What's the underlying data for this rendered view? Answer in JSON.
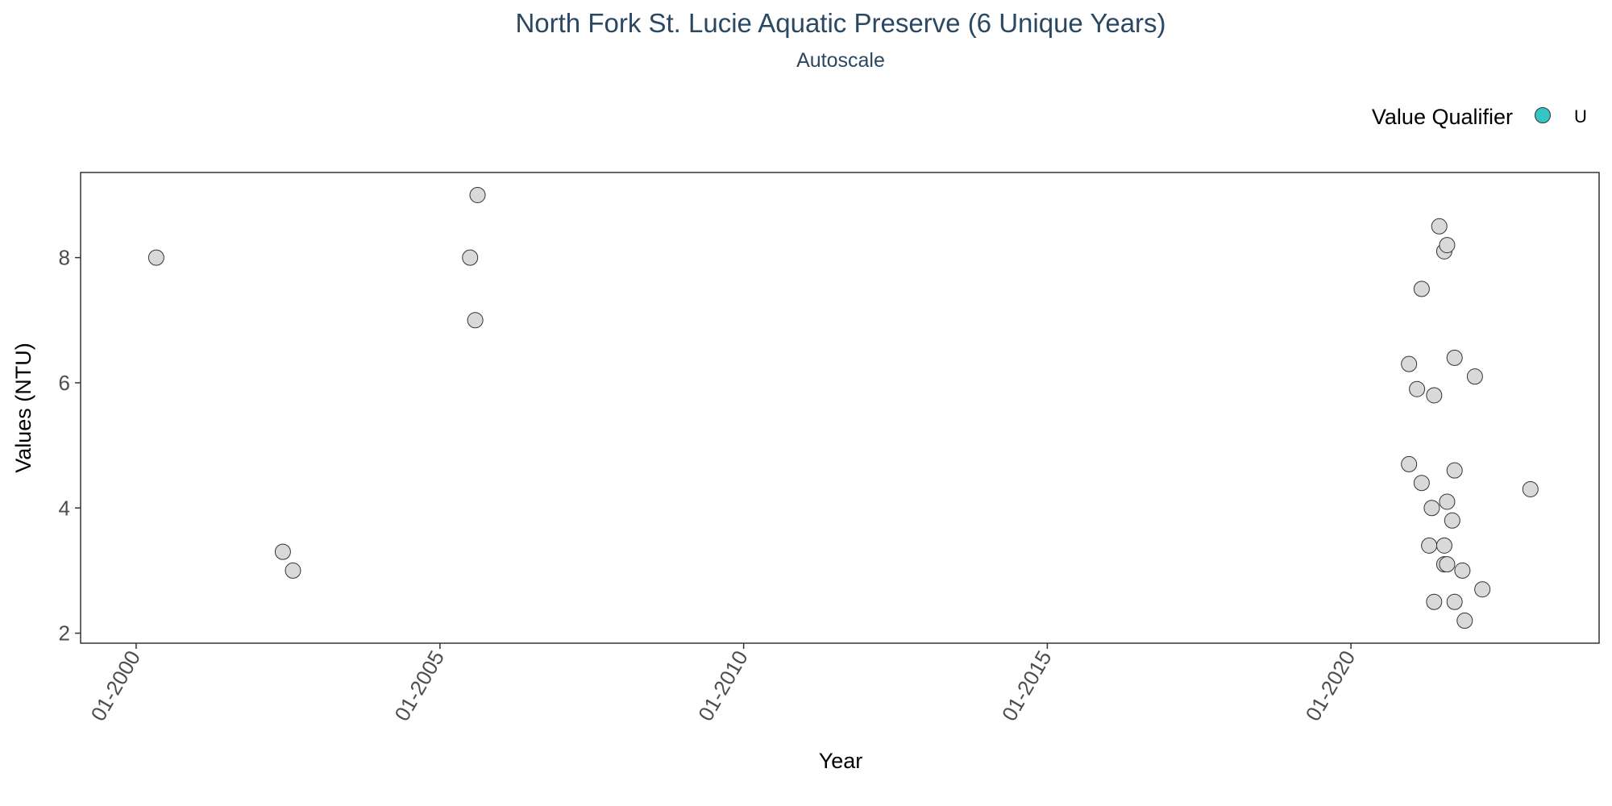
{
  "chart_data": {
    "type": "scatter",
    "title": "North Fork St. Lucie Aquatic Preserve (6 Unique Years)",
    "subtitle": "Autoscale",
    "xlabel": "Year",
    "ylabel": "Values (NTU)",
    "xlim": [
      "1999-02-01",
      "2024-02-01"
    ],
    "ylim": [
      1.84,
      9.36
    ],
    "x_ticks": [
      {
        "date": "2000-01-01",
        "label": "01-2000"
      },
      {
        "date": "2005-01-01",
        "label": "01-2005"
      },
      {
        "date": "2010-01-01",
        "label": "01-2010"
      },
      {
        "date": "2015-01-01",
        "label": "01-2015"
      },
      {
        "date": "2020-01-01",
        "label": "01-2020"
      }
    ],
    "y_ticks": [
      2,
      4,
      6,
      8
    ],
    "grid": false,
    "legend": {
      "title": "Value Qualifier",
      "position": "top-right",
      "entries": [
        {
          "label": "U",
          "color": "#36c5c5"
        }
      ]
    },
    "point_fill": "#d9d9d9",
    "point_stroke": "#333333",
    "points": [
      {
        "x": "2000-05-01",
        "y": 8.0
      },
      {
        "x": "2002-06-01",
        "y": 3.3
      },
      {
        "x": "2002-08-01",
        "y": 3.0
      },
      {
        "x": "2005-07-01",
        "y": 8.0
      },
      {
        "x": "2005-08-01",
        "y": 7.0
      },
      {
        "x": "2005-08-15",
        "y": 9.0
      },
      {
        "x": "2020-12-15",
        "y": 6.3
      },
      {
        "x": "2020-12-15",
        "y": 4.7
      },
      {
        "x": "2021-02-01",
        "y": 5.9
      },
      {
        "x": "2021-03-01",
        "y": 7.5
      },
      {
        "x": "2021-03-01",
        "y": 4.4
      },
      {
        "x": "2021-04-15",
        "y": 3.4
      },
      {
        "x": "2021-05-01",
        "y": 4.0
      },
      {
        "x": "2021-05-15",
        "y": 2.5
      },
      {
        "x": "2021-05-15",
        "y": 5.8
      },
      {
        "x": "2021-06-15",
        "y": 8.5
      },
      {
        "x": "2021-07-15",
        "y": 8.1
      },
      {
        "x": "2021-07-15",
        "y": 3.4
      },
      {
        "x": "2021-07-15",
        "y": 3.1
      },
      {
        "x": "2021-08-01",
        "y": 8.2
      },
      {
        "x": "2021-08-01",
        "y": 4.1
      },
      {
        "x": "2021-08-01",
        "y": 3.1
      },
      {
        "x": "2021-09-01",
        "y": 3.8
      },
      {
        "x": "2021-09-15",
        "y": 6.4
      },
      {
        "x": "2021-09-15",
        "y": 4.6
      },
      {
        "x": "2021-09-15",
        "y": 2.5
      },
      {
        "x": "2021-11-01",
        "y": 3.0
      },
      {
        "x": "2021-11-15",
        "y": 2.2
      },
      {
        "x": "2022-01-15",
        "y": 6.1
      },
      {
        "x": "2022-03-01",
        "y": 2.7
      },
      {
        "x": "2022-12-15",
        "y": 4.3
      }
    ]
  }
}
